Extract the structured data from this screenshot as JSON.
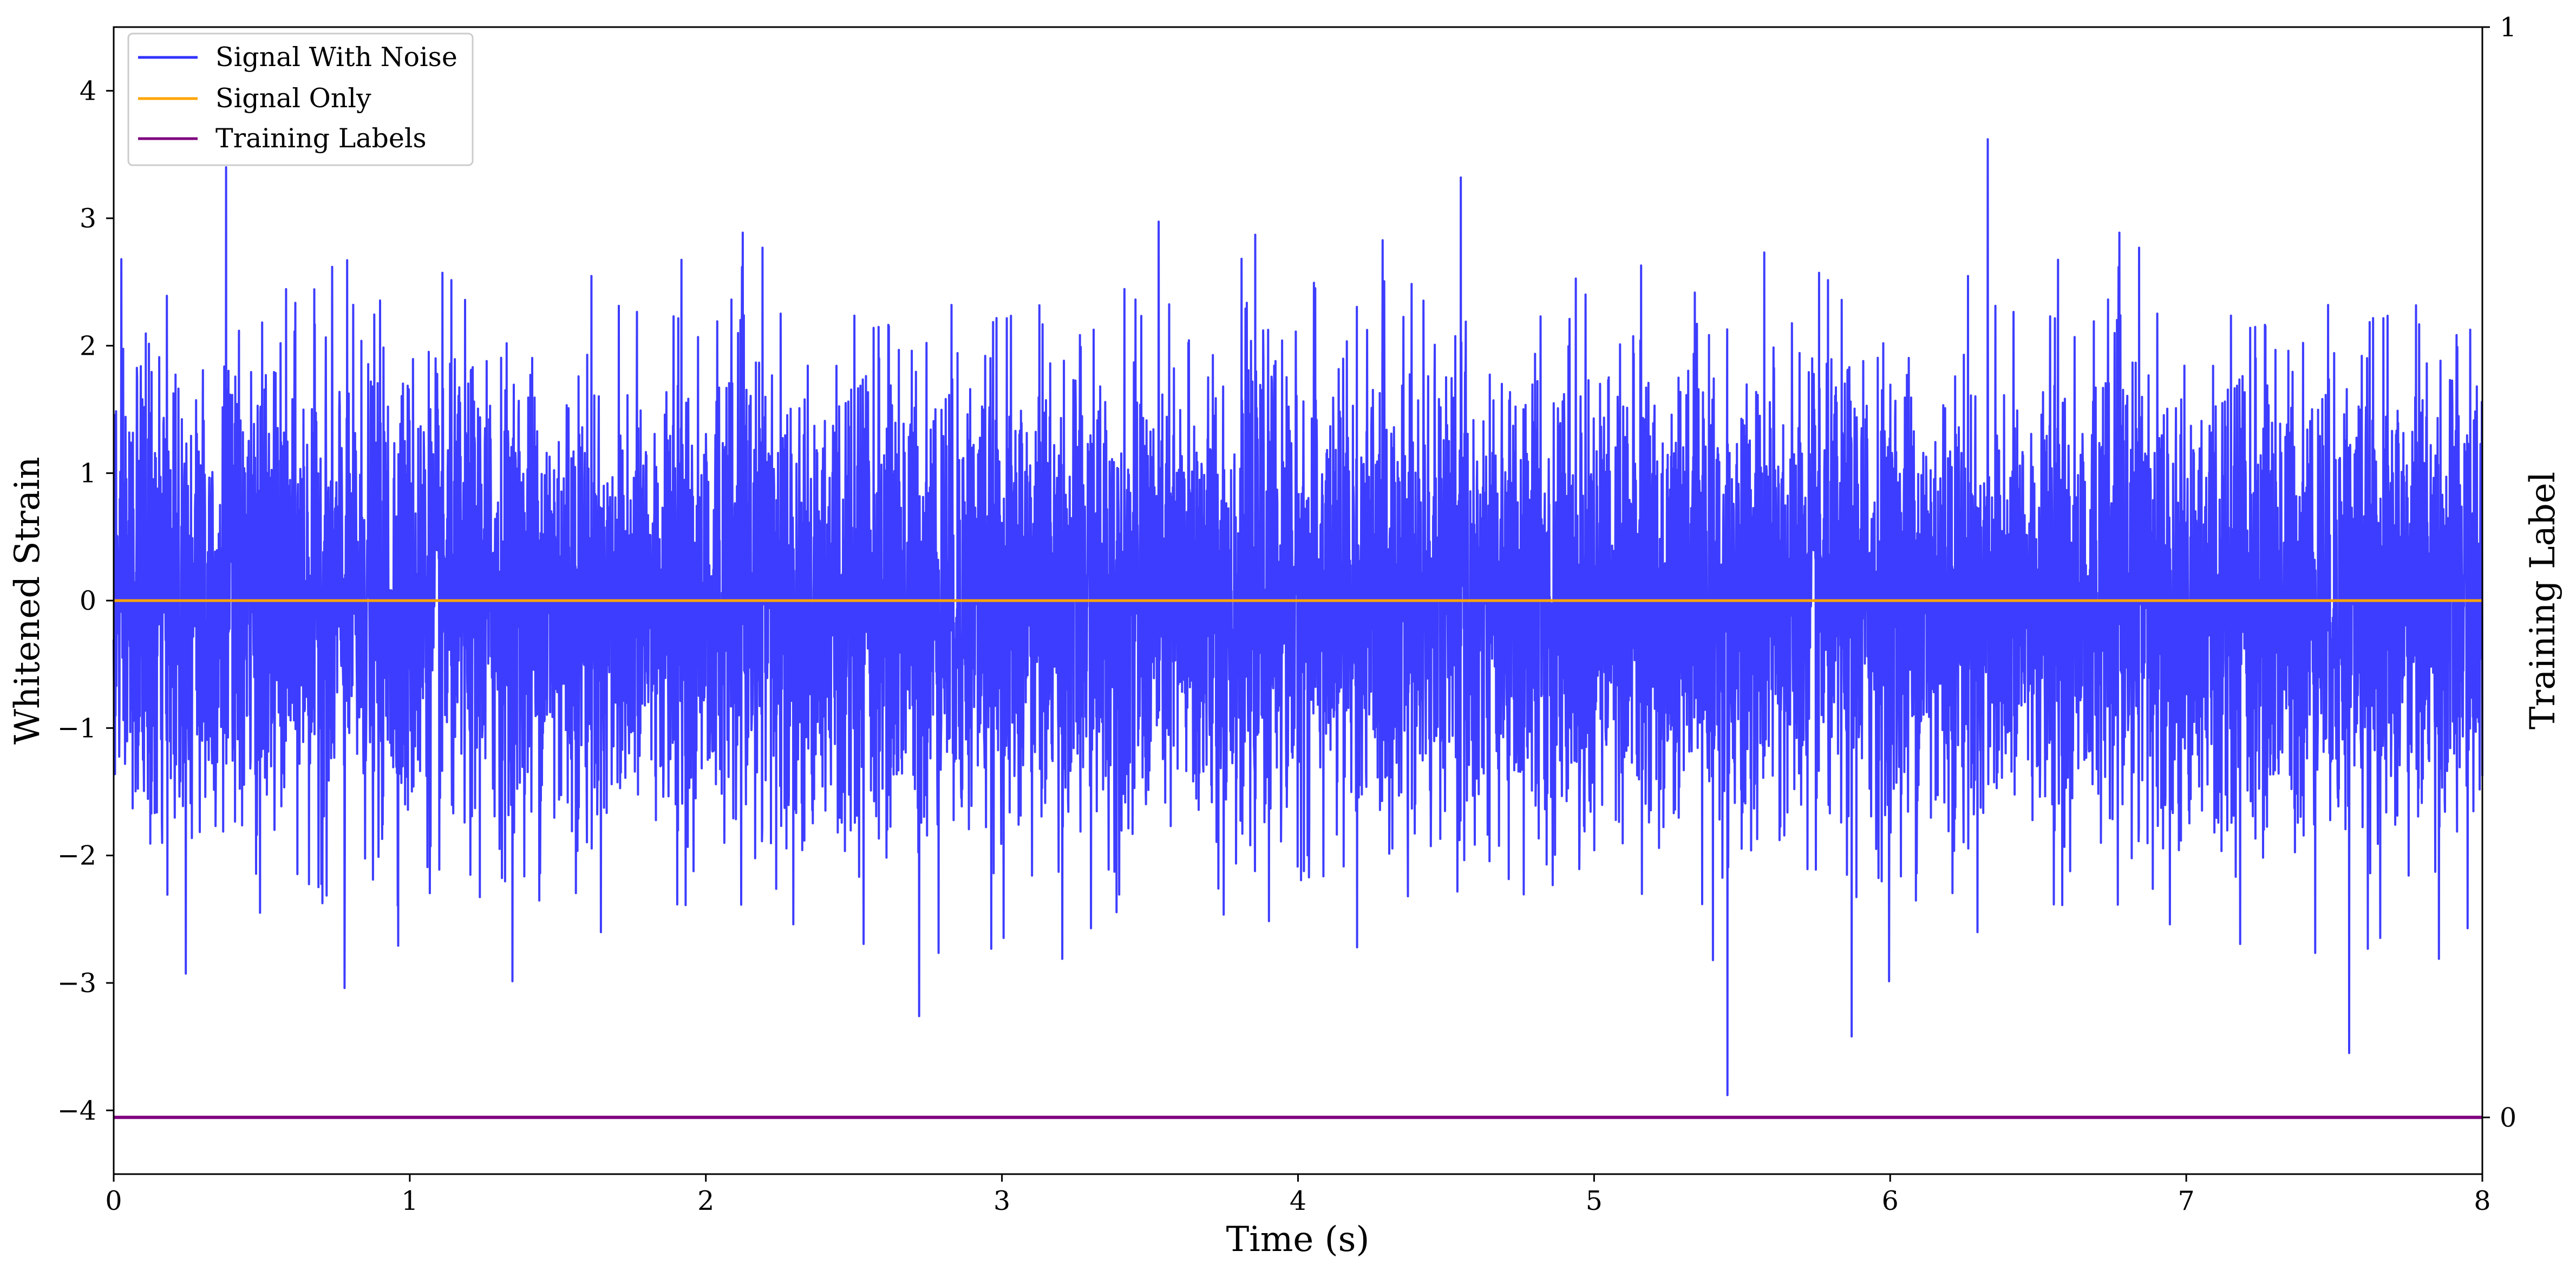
{
  "chart_data": {
    "type": "line",
    "title": "",
    "xlabel": "Time (s)",
    "ylabel": "Whitened Strain",
    "y2label": "Training Label",
    "xlim": [
      0,
      8
    ],
    "ylim": [
      -4.5,
      4.5
    ],
    "y2lim": [
      -0.052,
      1.0
    ],
    "x_ticks": [
      0,
      1,
      2,
      3,
      4,
      5,
      6,
      7,
      8
    ],
    "x_tick_labels": [
      "0",
      "1",
      "2",
      "3",
      "4",
      "5",
      "6",
      "7",
      "8"
    ],
    "y_ticks": [
      -4,
      -3,
      -2,
      -1,
      0,
      1,
      2,
      3,
      4
    ],
    "y_tick_labels": [
      "−4",
      "−3",
      "−2",
      "−1",
      "0",
      "1",
      "2",
      "3",
      "4"
    ],
    "y2_ticks": [
      0,
      1
    ],
    "y2_tick_labels": [
      "0",
      "1"
    ],
    "grid": false,
    "legend_position": "top-left",
    "series": [
      {
        "name": "Signal With Noise",
        "color": "#3333ff",
        "axis": "left",
        "description_values": "dense noise, roughly between -3 and +3 whitened strain across 0-8 s",
        "typical_abs_amplitude": 0.9,
        "max_value": 3.62,
        "min_value": -3.88,
        "notable_peaks": [
          {
            "x": 0.38,
            "y": 3.4
          },
          {
            "x": 4.55,
            "y": 3.32
          },
          {
            "x": 6.33,
            "y": 3.62
          },
          {
            "x": 5.45,
            "y": -3.88
          },
          {
            "x": 0.78,
            "y": -3.04
          },
          {
            "x": 2.72,
            "y": -3.26
          },
          {
            "x": 5.87,
            "y": -3.42
          },
          {
            "x": 7.55,
            "y": -3.55
          }
        ]
      },
      {
        "name": "Signal Only",
        "color": "#ffa500",
        "axis": "left",
        "x": [
          0,
          8
        ],
        "y": [
          0,
          0
        ]
      },
      {
        "name": "Training Labels",
        "color": "#800080",
        "axis": "right",
        "x": [
          0,
          8
        ],
        "y": [
          0,
          0
        ]
      }
    ]
  }
}
